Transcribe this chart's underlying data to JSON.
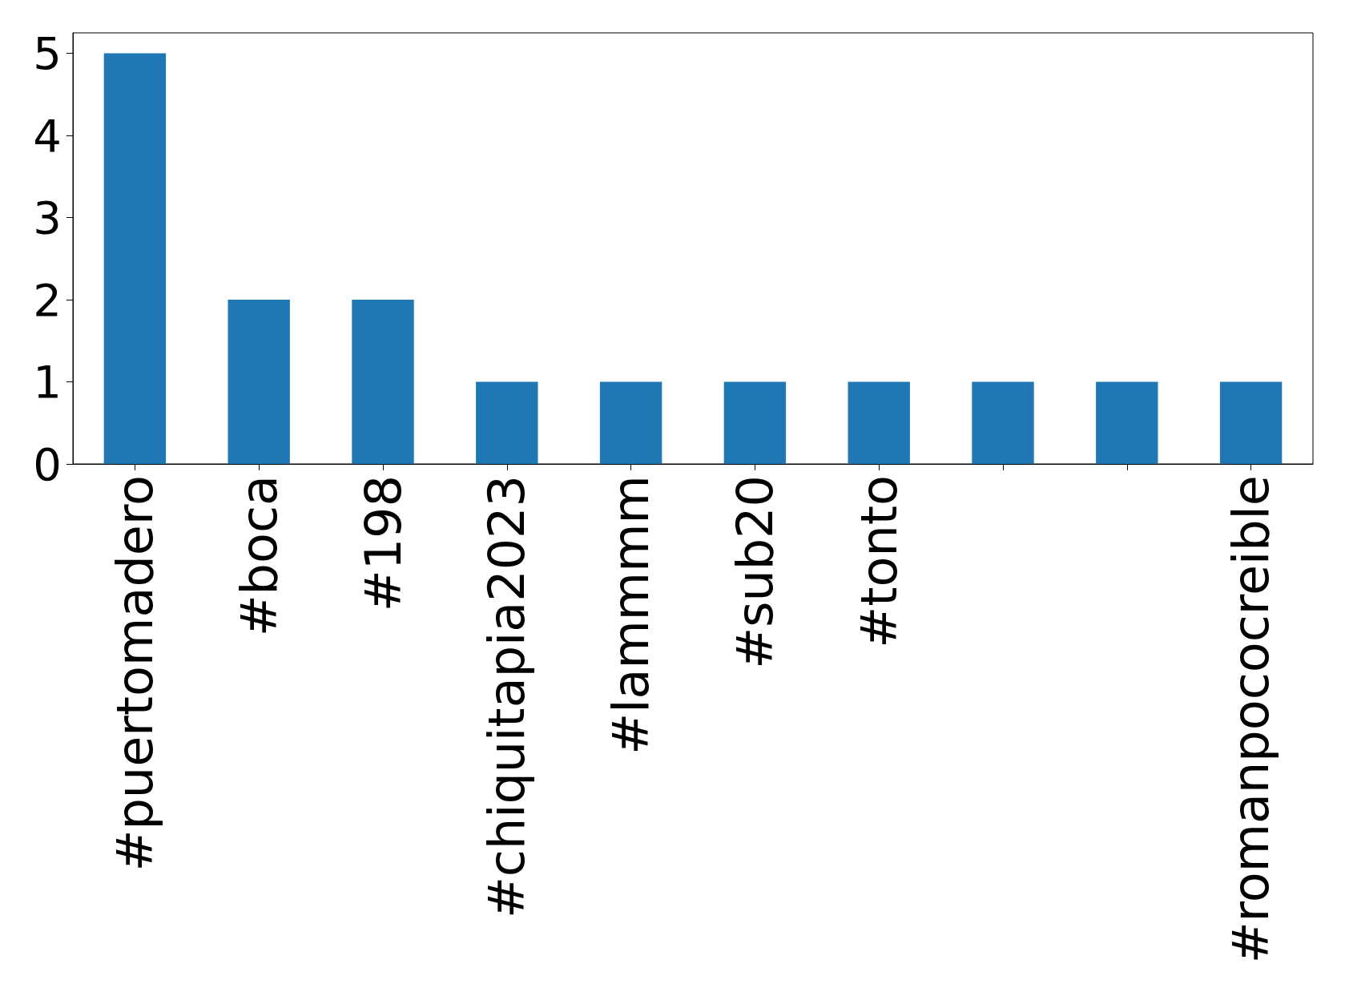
{
  "chart_data": {
    "type": "bar",
    "categories": [
      "#puertomadero",
      "#boca",
      "#198",
      "#chiquitapia2023",
      "#lammmm",
      "#sub20",
      "#tonto",
      null,
      null,
      "#romanpococreible"
    ],
    "values": [
      5,
      2,
      2,
      1,
      1,
      1,
      1,
      1,
      1,
      1
    ],
    "color": "#1f77b4",
    "ylim": [
      0,
      5.25
    ],
    "yticks": [
      0,
      1,
      2,
      3,
      4,
      5
    ],
    "grid": false
  }
}
